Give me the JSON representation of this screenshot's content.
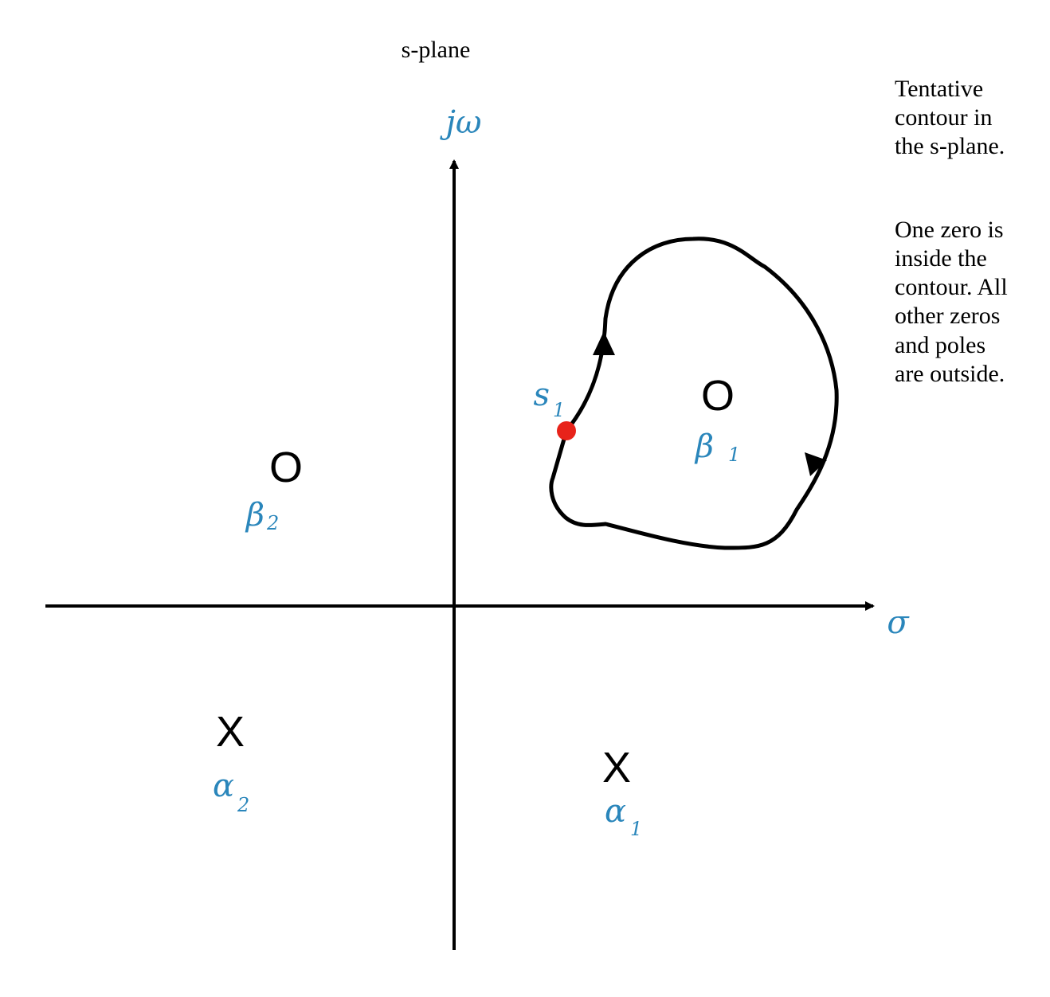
{
  "title": "s-plane",
  "axes": {
    "vertical_label": "jω",
    "horizontal_label": "σ"
  },
  "note": {
    "lines_1": [
      "Tentative",
      "contour in",
      "the s-plane."
    ],
    "lines_2": [
      "One zero is",
      "inside the",
      "contour. All",
      "other zeros",
      "and poles",
      "are outside."
    ]
  },
  "markers": {
    "zero_symbol": "O",
    "pole_symbol": "X"
  },
  "labels": {
    "beta1": {
      "main": "β",
      "sub": "1"
    },
    "beta2": {
      "main": "β",
      "sub": "2"
    },
    "alpha1": {
      "main": "α",
      "sub": "1"
    },
    "alpha2": {
      "main": "α",
      "sub": "2"
    },
    "s1": {
      "main": "s",
      "sub": "1"
    }
  },
  "colors": {
    "label": "#2a86bb",
    "point": "#e8231a",
    "line": "#000000"
  }
}
